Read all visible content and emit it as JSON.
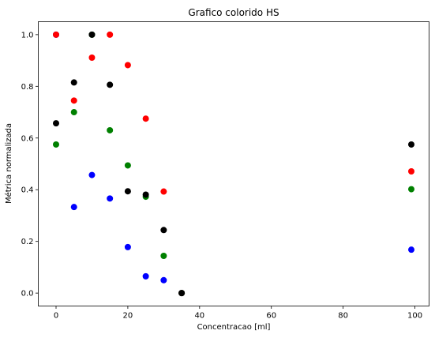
{
  "chart_data": {
    "type": "scatter",
    "title": "Grafico colorido HS",
    "xlabel": "Concentracao [ml]",
    "ylabel": "Métrica normalizada",
    "xlim": [
      -4.95,
      103.95
    ],
    "ylim": [
      -0.05,
      1.05
    ],
    "xticks": [
      0,
      20,
      40,
      60,
      80,
      100
    ],
    "yticks": [
      0.0,
      0.2,
      0.4,
      0.6,
      0.8,
      1.0
    ],
    "xtick_labels": [
      "0",
      "20",
      "40",
      "60",
      "80",
      "100"
    ],
    "ytick_labels": [
      "0.0",
      "0.2",
      "0.4",
      "0.6",
      "0.8",
      "1.0"
    ],
    "grid": false,
    "series": [
      {
        "color": "#0000ff",
        "points": [
          [
            0,
            1.0
          ],
          [
            5,
            0.333
          ],
          [
            10,
            0.457
          ],
          [
            15,
            0.366
          ],
          [
            20,
            0.178
          ],
          [
            25,
            0.065
          ],
          [
            30,
            0.05
          ],
          [
            35,
            0.0
          ],
          [
            99,
            0.168
          ]
        ]
      },
      {
        "color": "#ff0000",
        "points": [
          [
            0,
            1.0
          ],
          [
            5,
            0.745
          ],
          [
            10,
            0.911
          ],
          [
            15,
            1.0
          ],
          [
            20,
            0.882
          ],
          [
            25,
            0.675
          ],
          [
            30,
            0.393
          ],
          [
            35,
            0.0
          ],
          [
            99,
            0.471
          ]
        ]
      },
      {
        "color": "#008000",
        "points": [
          [
            0,
            0.575
          ],
          [
            5,
            0.7
          ],
          [
            10,
            1.0
          ],
          [
            15,
            0.63
          ],
          [
            20,
            0.494
          ],
          [
            25,
            0.373
          ],
          [
            30,
            0.144
          ],
          [
            35,
            0.0
          ],
          [
            99,
            0.402
          ]
        ]
      },
      {
        "color": "#000000",
        "points": [
          [
            0,
            0.657
          ],
          [
            5,
            0.815
          ],
          [
            10,
            1.0
          ],
          [
            15,
            0.806
          ],
          [
            20,
            0.394
          ],
          [
            25,
            0.381
          ],
          [
            30,
            0.244
          ],
          [
            35,
            0.0
          ],
          [
            99,
            0.575
          ]
        ]
      }
    ]
  }
}
